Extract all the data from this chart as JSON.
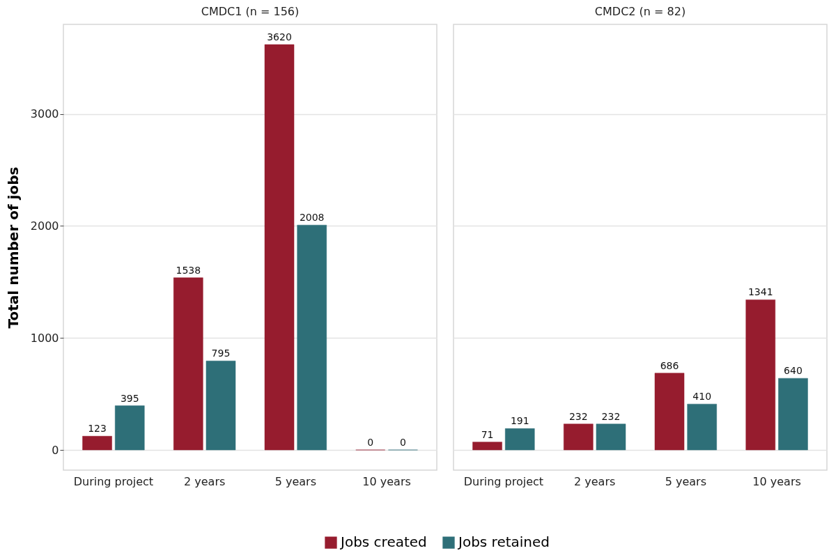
{
  "chart_data": [
    {
      "type": "bar",
      "title": "CMDC1 (n = 156)",
      "ylabel": "Total number of jobs",
      "categories": [
        "During project",
        "2 years",
        "5 years",
        "10 years"
      ],
      "series": [
        {
          "name": "Jobs created",
          "color": "#961c2e",
          "values": [
            123,
            1538,
            3620,
            0
          ]
        },
        {
          "name": "Jobs retained",
          "color": "#2e6f78",
          "values": [
            395,
            795,
            2008,
            0
          ]
        }
      ],
      "ylim": [
        -180,
        3800
      ],
      "yticks": [
        0,
        1000,
        2000,
        3000
      ],
      "data_labels": true,
      "grid": "y",
      "legend": "bottom"
    },
    {
      "type": "bar",
      "title": "CMDC2 (n = 82)",
      "categories": [
        "During project",
        "2 years",
        "5 years",
        "10 years"
      ],
      "series": [
        {
          "name": "Jobs created",
          "color": "#961c2e",
          "values": [
            71,
            232,
            686,
            1341
          ]
        },
        {
          "name": "Jobs retained",
          "color": "#2e6f78",
          "values": [
            191,
            232,
            410,
            640
          ]
        }
      ],
      "ylim": [
        -180,
        3800
      ],
      "yticks": [
        0,
        1000,
        2000,
        3000
      ],
      "data_labels": true,
      "grid": "y",
      "legend": "bottom",
      "tick_labels": "x"
    }
  ]
}
